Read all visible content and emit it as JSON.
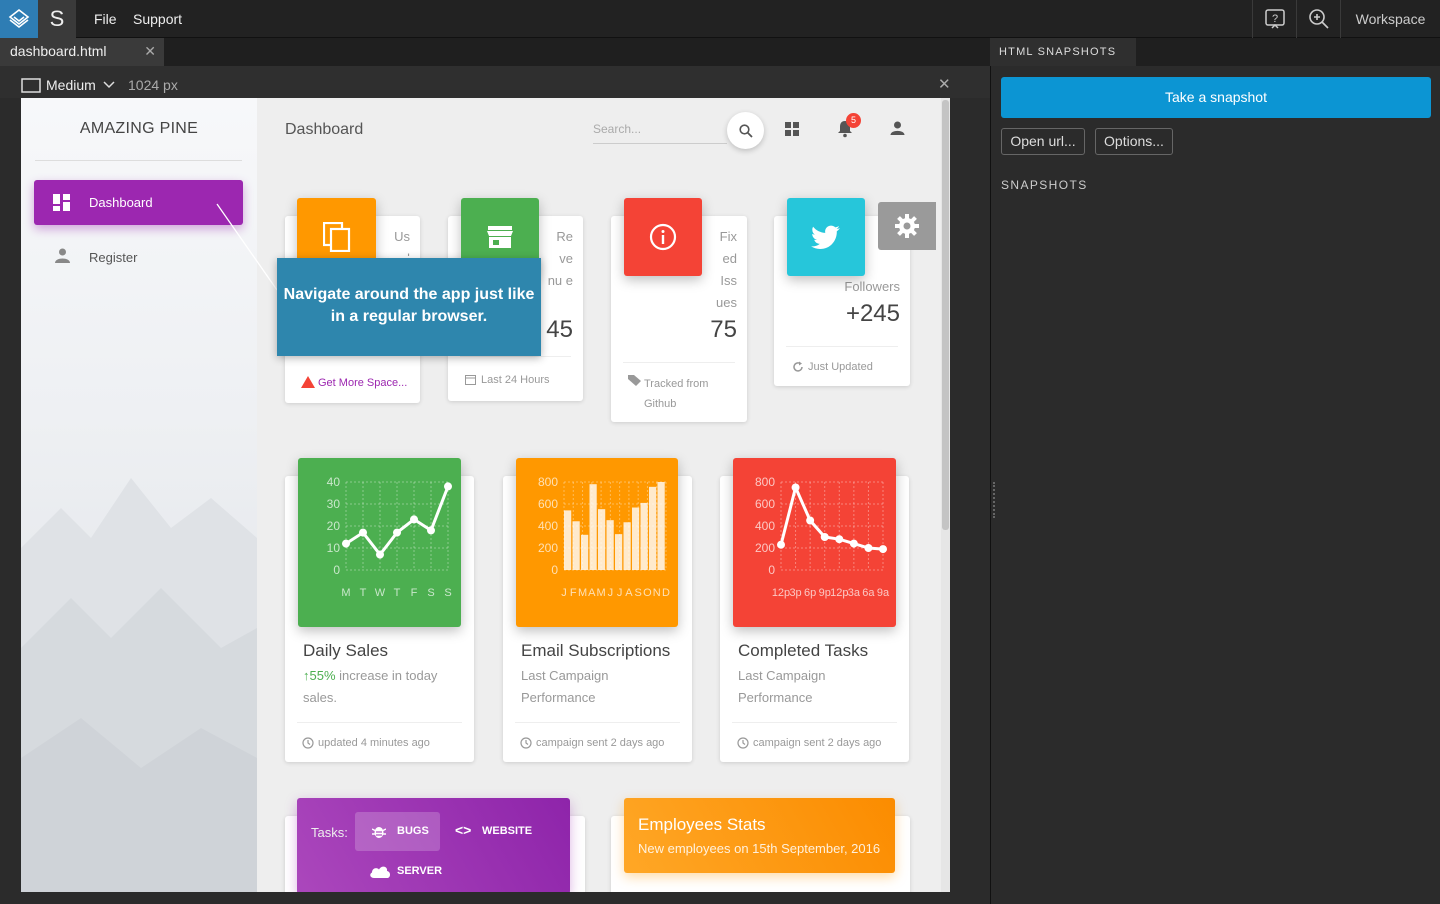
{
  "app": {
    "menu": [
      "File",
      "Support"
    ],
    "s_label": "S",
    "workspace": "Workspace"
  },
  "editor": {
    "file_tab": "dashboard.html",
    "device": "Medium",
    "width_label": "1024 px"
  },
  "site": {
    "brand": "AMAZING PINE",
    "nav": [
      {
        "label": "Dashboard",
        "active": true,
        "icon": "dashboard-icon"
      },
      {
        "label": "Register",
        "active": false,
        "icon": "person-icon"
      }
    ],
    "page_title": "Dashboard",
    "search_placeholder": "Search...",
    "notification_count": "5",
    "stats": [
      {
        "icon": "content-copy-icon",
        "color": "#ff9800",
        "label": "Us ed",
        "value": "",
        "footer": "Get More Space..."
      },
      {
        "icon": "store-icon",
        "color": "#4caf50",
        "label": "Re ve nu e",
        "value": "45",
        "footer": "Last 24 Hours"
      },
      {
        "icon": "info-icon",
        "color": "#f44336",
        "label": "Fix ed Iss ues",
        "value": "75",
        "footer": "Tracked from Github"
      },
      {
        "icon": "twitter-icon",
        "color": "#26c6da",
        "label": "Followers",
        "value": "+245",
        "footer": "Just Updated"
      }
    ],
    "charts": [
      {
        "title": "Daily Sales",
        "highlight": "55%",
        "sub": "increase in today sales.",
        "footer": "updated 4 minutes ago",
        "color": "#4caf50"
      },
      {
        "title": "Email Subscriptions",
        "sub": "Last Campaign Performance",
        "footer": "campaign sent 2 days ago",
        "color": "#ff9800"
      },
      {
        "title": "Completed Tasks",
        "sub": "Last Campaign Performance",
        "footer": "campaign sent 2 days ago",
        "color": "#f44336"
      }
    ],
    "tasks": {
      "label": "Tasks:",
      "tabs": [
        "BUGS",
        "WEBSITE",
        "SERVER"
      ]
    },
    "employees": {
      "title": "Employees Stats",
      "sub": "New employees on 15th September, 2016"
    },
    "tooltip": "Navigate around the app just like in a regular browser."
  },
  "panel": {
    "tab": "HTML SNAPSHOTS",
    "take_snapshot": "Take a snapshot",
    "open_url": "Open url...",
    "options": "Options...",
    "snapshots_label": "SNAPSHOTS"
  },
  "chart_data": [
    {
      "type": "line",
      "categories": [
        "M",
        "T",
        "W",
        "T",
        "F",
        "S",
        "S"
      ],
      "values": [
        12,
        17,
        7,
        17,
        23,
        18,
        38
      ],
      "ylim": [
        0,
        40
      ],
      "yticks": [
        0,
        10,
        20,
        30,
        40
      ]
    },
    {
      "type": "bar",
      "categories": [
        "J",
        "F",
        "M",
        "A",
        "M",
        "J",
        "J",
        "A",
        "S",
        "O",
        "N",
        "D"
      ],
      "values": [
        542,
        443,
        320,
        780,
        553,
        453,
        326,
        434,
        568,
        610,
        756,
        895
      ],
      "ylim": [
        0,
        800
      ],
      "yticks": [
        0,
        200,
        400,
        600,
        800
      ]
    },
    {
      "type": "line",
      "categories": [
        "12p",
        "3p",
        "6p",
        "9p",
        "12p",
        "3a",
        "6a",
        "9a"
      ],
      "values": [
        230,
        750,
        450,
        300,
        280,
        240,
        200,
        190
      ],
      "ylim": [
        0,
        800
      ],
      "yticks": [
        0,
        200,
        400,
        600,
        800
      ]
    }
  ]
}
